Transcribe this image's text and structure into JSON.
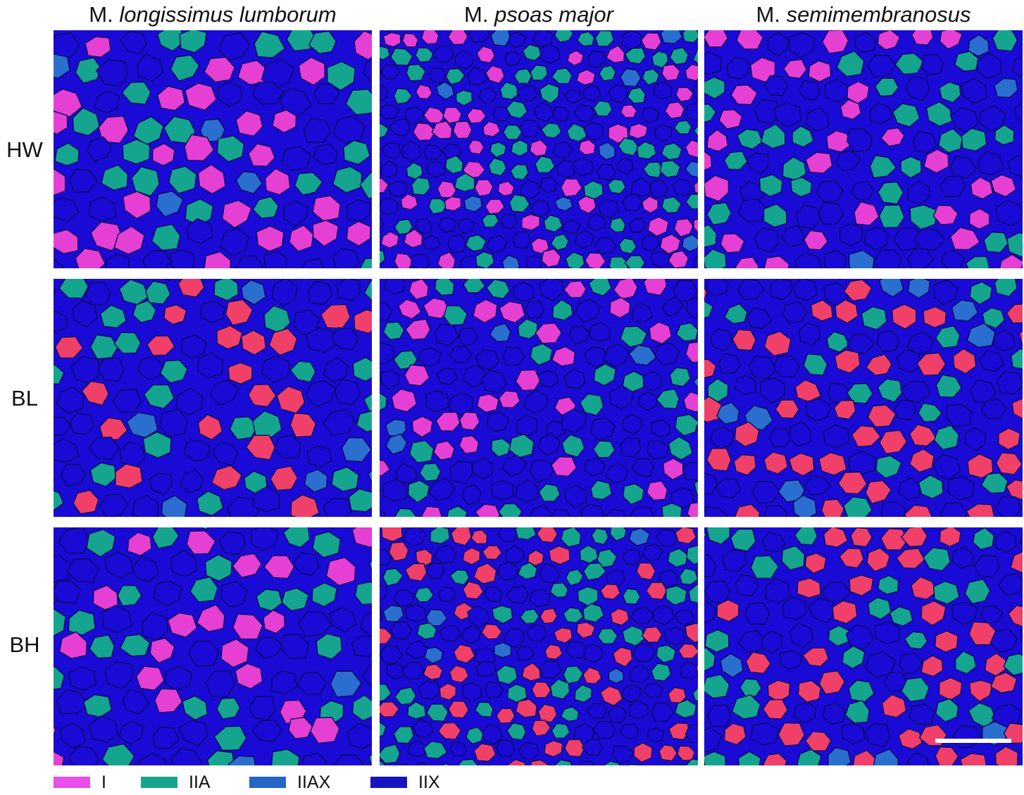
{
  "columns": [
    {
      "prefix": "M. ",
      "name": "longissimus lumborum"
    },
    {
      "prefix": "M. ",
      "name": "psoas major"
    },
    {
      "prefix": "M. ",
      "name": "semimembranosus"
    }
  ],
  "rows": [
    "HW",
    "BL",
    "BH"
  ],
  "legend": [
    {
      "label": "I",
      "color": "#e84ee8"
    },
    {
      "label": "IIA",
      "color": "#16a58a"
    },
    {
      "label": "IIAX",
      "color": "#2466c8"
    },
    {
      "label": "IIX",
      "color": "#1414c0"
    }
  ],
  "colors": {
    "background_fiber": "#1a0ad6",
    "fiber_border": "#0a0a5a",
    "type_I_pink": "#e63fd4",
    "type_I_red": "#f0406a",
    "type_IIA": "#15a58f",
    "type_IIAX": "#2a6fd0"
  },
  "panels": [
    {
      "row": "HW",
      "column": "longissimus lumborum",
      "type_I_tone": "pink",
      "scale_bar": false
    },
    {
      "row": "HW",
      "column": "psoas major",
      "type_I_tone": "pink",
      "scale_bar": false
    },
    {
      "row": "HW",
      "column": "semimembranosus",
      "type_I_tone": "pink",
      "scale_bar": false
    },
    {
      "row": "BL",
      "column": "longissimus lumborum",
      "type_I_tone": "red",
      "scale_bar": false
    },
    {
      "row": "BL",
      "column": "psoas major",
      "type_I_tone": "pink",
      "scale_bar": false
    },
    {
      "row": "BL",
      "column": "semimembranosus",
      "type_I_tone": "red",
      "scale_bar": false
    },
    {
      "row": "BH",
      "column": "longissimus lumborum",
      "type_I_tone": "pink",
      "scale_bar": false
    },
    {
      "row": "BH",
      "column": "psoas major",
      "type_I_tone": "red",
      "scale_bar": false
    },
    {
      "row": "BH",
      "column": "semimembranosus",
      "type_I_tone": "red",
      "scale_bar": true
    }
  ]
}
